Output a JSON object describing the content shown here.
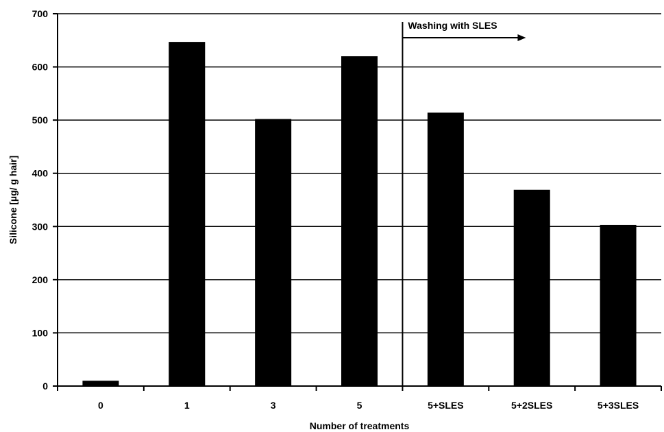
{
  "chart_data": {
    "type": "bar",
    "title": "",
    "xlabel": "Number of treatments",
    "ylabel": "Silicone [µg/ g hair]",
    "categories": [
      "0",
      "1",
      "3",
      "5",
      "5+SLES",
      "5+2SLES",
      "5+3SLES"
    ],
    "values": [
      10,
      647,
      502,
      620,
      514,
      369,
      303
    ],
    "ylim": [
      0,
      700
    ],
    "yticks": [
      "0",
      "100",
      "200",
      "300",
      "400",
      "500",
      "600",
      "700"
    ],
    "grid": true,
    "legend": "none",
    "bar_color": "#000000",
    "annotation": {
      "text": "Washing with SLES",
      "divider_between": [
        "5",
        "5+SLES"
      ],
      "arrow": "right"
    }
  }
}
